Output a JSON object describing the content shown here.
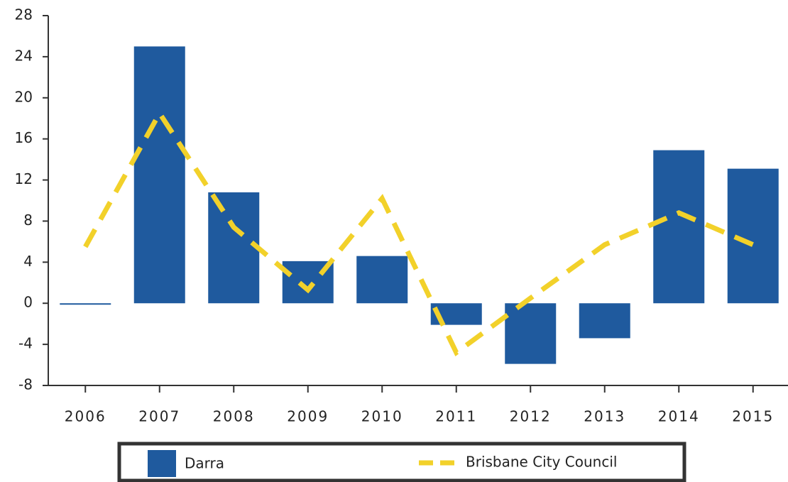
{
  "chart_data": {
    "type": "bar",
    "categories": [
      "2006",
      "2007",
      "2008",
      "2009",
      "2010",
      "2011",
      "2012",
      "2013",
      "2014",
      "2015"
    ],
    "series": [
      {
        "name": "Darra",
        "type": "bar",
        "color": "#1f5a9e",
        "values": [
          0,
          25,
          10.8,
          4.1,
          4.6,
          -2.1,
          -5.9,
          -3.4,
          14.9,
          13.1
        ]
      },
      {
        "name": "Brisbane City Council",
        "type": "line",
        "color": "#f2d12a",
        "values": [
          5.5,
          18.5,
          7.4,
          1.3,
          10.2,
          -4.8,
          0.5,
          5.7,
          8.8,
          5.7
        ]
      }
    ],
    "ylim": [
      -8,
      28
    ],
    "yticks": [
      -8,
      -4,
      0,
      4,
      8,
      12,
      16,
      20,
      24,
      28
    ]
  }
}
